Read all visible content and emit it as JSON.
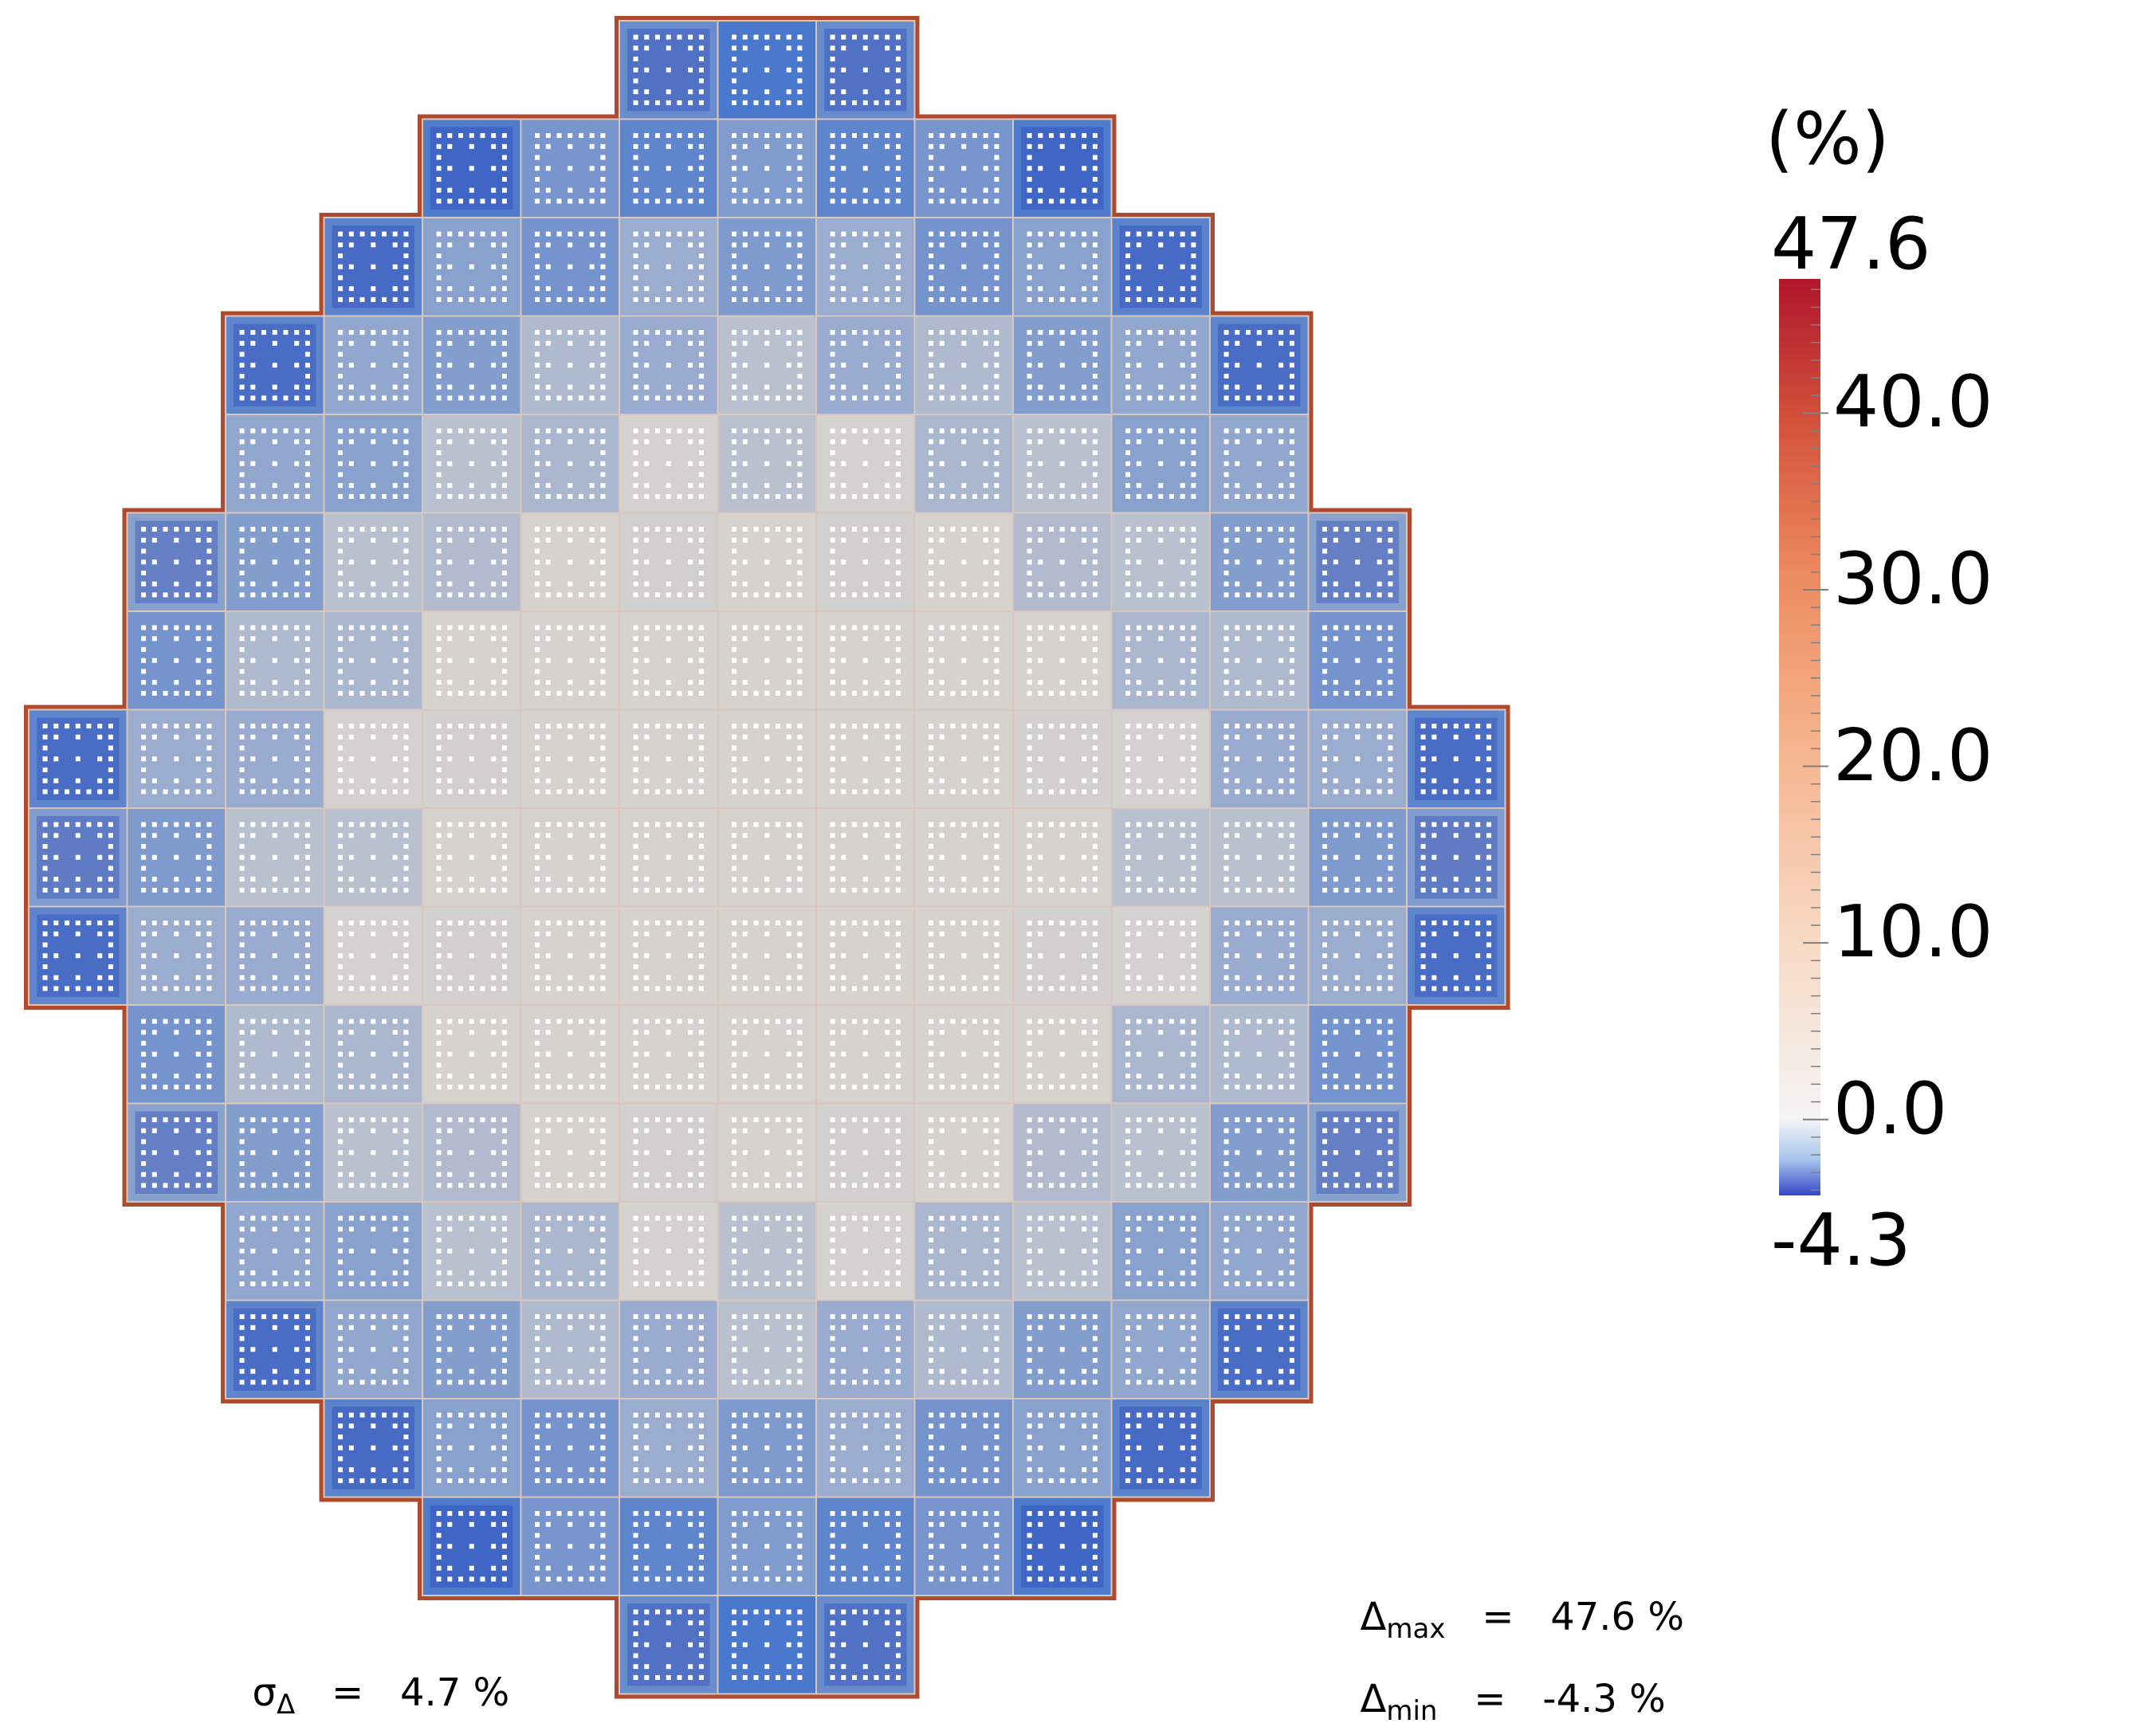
{
  "colorbar": {
    "unit_label": "(%)",
    "max_label": "47.6",
    "min_label": "-4.3",
    "min": -4.3,
    "max": 47.6,
    "ticks": [
      {
        "value": 40.0,
        "label": "40.0"
      },
      {
        "value": 30.0,
        "label": "30.0"
      },
      {
        "value": 20.0,
        "label": "20.0"
      },
      {
        "value": 10.0,
        "label": "10.0"
      },
      {
        "value": 0.0,
        "label": "0.0"
      }
    ],
    "colors": {
      "low": "#3a4ec8",
      "zero": "#f2f2f2",
      "mid": "#f5a478",
      "high": "#b3182c"
    }
  },
  "stats": {
    "sigma_symbol": "σ",
    "sigma_sub": "Δ",
    "sigma_value": "=   4.7 %",
    "max_symbol": "Δ",
    "max_sub": "max",
    "max_value": "=   47.6 %",
    "min_symbol": "Δ",
    "min_sub": "min",
    "min_value": "=   -4.3 %"
  },
  "core_map": {
    "assembly_rows": [
      {
        "start": 6,
        "count": 3
      },
      {
        "start": 4,
        "count": 7
      },
      {
        "start": 3,
        "count": 9
      },
      {
        "start": 2,
        "count": 11
      },
      {
        "start": 2,
        "count": 11
      },
      {
        "start": 1,
        "count": 13
      },
      {
        "start": 1,
        "count": 13
      },
      {
        "start": 0,
        "count": 15
      },
      {
        "start": 0,
        "count": 15
      },
      {
        "start": 0,
        "count": 15
      },
      {
        "start": 1,
        "count": 13
      },
      {
        "start": 1,
        "count": 13
      },
      {
        "start": 2,
        "count": 11
      },
      {
        "start": 2,
        "count": 11
      },
      {
        "start": 3,
        "count": 9
      },
      {
        "start": 4,
        "count": 7
      },
      {
        "start": 6,
        "count": 3
      }
    ],
    "colors": {
      "center": "#d6d3cf",
      "edge_blue": "#4a78cc",
      "deep_blue": "#2140b4",
      "reflector_rim": "#b04a2c",
      "pin_dot": "#ffffff"
    }
  }
}
